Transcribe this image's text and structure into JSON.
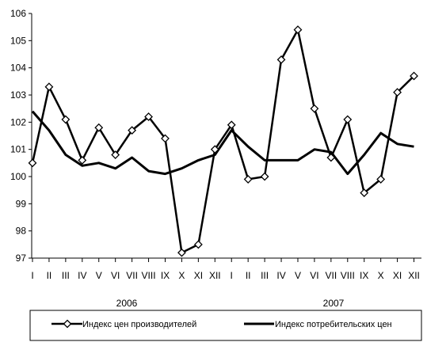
{
  "chart_data": {
    "type": "line",
    "categories": [
      "I",
      "II",
      "III",
      "IV",
      "V",
      "VI",
      "VII",
      "VIII",
      "IX",
      "X",
      "XI",
      "XII",
      "I",
      "II",
      "III",
      "IV",
      "V",
      "VI",
      "VII",
      "VIII",
      "IX",
      "X",
      "XI",
      "XII"
    ],
    "year_labels": [
      "2006",
      "2007"
    ],
    "ylim": [
      97,
      106
    ],
    "yticks": [
      "97",
      "98",
      "99",
      "100",
      "101",
      "102",
      "103",
      "104",
      "105",
      "106"
    ],
    "grid": false,
    "legend_position": "bottom",
    "series": [
      {
        "name": "Индекс цен производителей",
        "marker": "diamond",
        "color": "#000000",
        "values": [
          100.5,
          103.3,
          102.1,
          100.6,
          101.8,
          100.8,
          101.7,
          102.2,
          101.4,
          97.2,
          97.5,
          101.0,
          101.9,
          99.9,
          100.0,
          104.3,
          105.4,
          102.5,
          100.7,
          102.1,
          99.4,
          99.9,
          103.1,
          103.7
        ]
      },
      {
        "name": "Индекс потребительских цен",
        "marker": "none",
        "color": "#000000",
        "values": [
          102.4,
          101.7,
          100.8,
          100.4,
          100.5,
          100.3,
          100.7,
          100.2,
          100.1,
          100.3,
          100.6,
          100.8,
          101.7,
          101.1,
          100.6,
          100.6,
          100.6,
          101.0,
          100.9,
          100.1,
          100.8,
          101.6,
          101.2,
          101.1
        ]
      }
    ]
  }
}
